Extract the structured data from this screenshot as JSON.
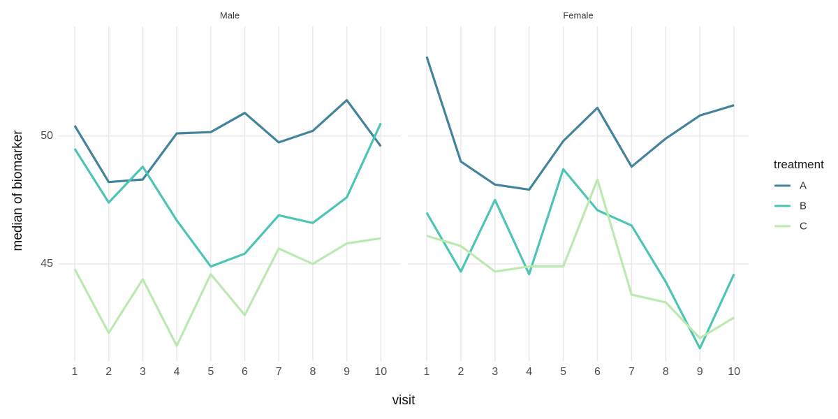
{
  "chart_data": {
    "type": "line",
    "x": [
      1,
      2,
      3,
      4,
      5,
      6,
      7,
      8,
      9,
      10
    ],
    "xlabel": "visit",
    "ylabel": "median of biomarker",
    "y_ticks": [
      45,
      50
    ],
    "ylim": [
      41.4,
      54.3
    ],
    "grid": "major-only",
    "panel_background": "#ffffff",
    "gridline_color": "#e8e8e8",
    "facets": [
      {
        "label": "Male",
        "series": [
          {
            "name": "A",
            "color": "#43839b",
            "values": [
              50.4,
              48.2,
              48.3,
              50.1,
              50.15,
              50.9,
              49.75,
              50.2,
              51.4,
              49.6
            ]
          },
          {
            "name": "B",
            "color": "#4ec4b4",
            "values": [
              49.5,
              47.4,
              48.8,
              46.7,
              44.9,
              45.4,
              46.9,
              46.6,
              47.6,
              50.5
            ]
          },
          {
            "name": "C",
            "color": "#bce8b1",
            "values": [
              44.8,
              42.3,
              44.4,
              41.8,
              44.6,
              43.0,
              45.6,
              45.0,
              45.8,
              46.0
            ]
          }
        ]
      },
      {
        "label": "Female",
        "series": [
          {
            "name": "A",
            "color": "#43839b",
            "values": [
              53.1,
              49.0,
              48.1,
              47.9,
              49.8,
              51.1,
              48.8,
              49.9,
              50.8,
              51.2
            ]
          },
          {
            "name": "B",
            "color": "#4ec4b4",
            "values": [
              47.0,
              44.7,
              47.5,
              44.6,
              48.7,
              47.1,
              46.5,
              44.3,
              41.7,
              44.6
            ]
          },
          {
            "name": "C",
            "color": "#bce8b1",
            "values": [
              46.1,
              45.7,
              44.7,
              44.9,
              44.9,
              48.3,
              43.8,
              43.5,
              42.1,
              42.9
            ]
          }
        ]
      }
    ],
    "legend": {
      "position": "right",
      "title": "treatment",
      "entries": [
        {
          "label": "A",
          "color": "#43839b"
        },
        {
          "label": "B",
          "color": "#4ec4b4"
        },
        {
          "label": "C",
          "color": "#bce8b1"
        }
      ]
    }
  }
}
